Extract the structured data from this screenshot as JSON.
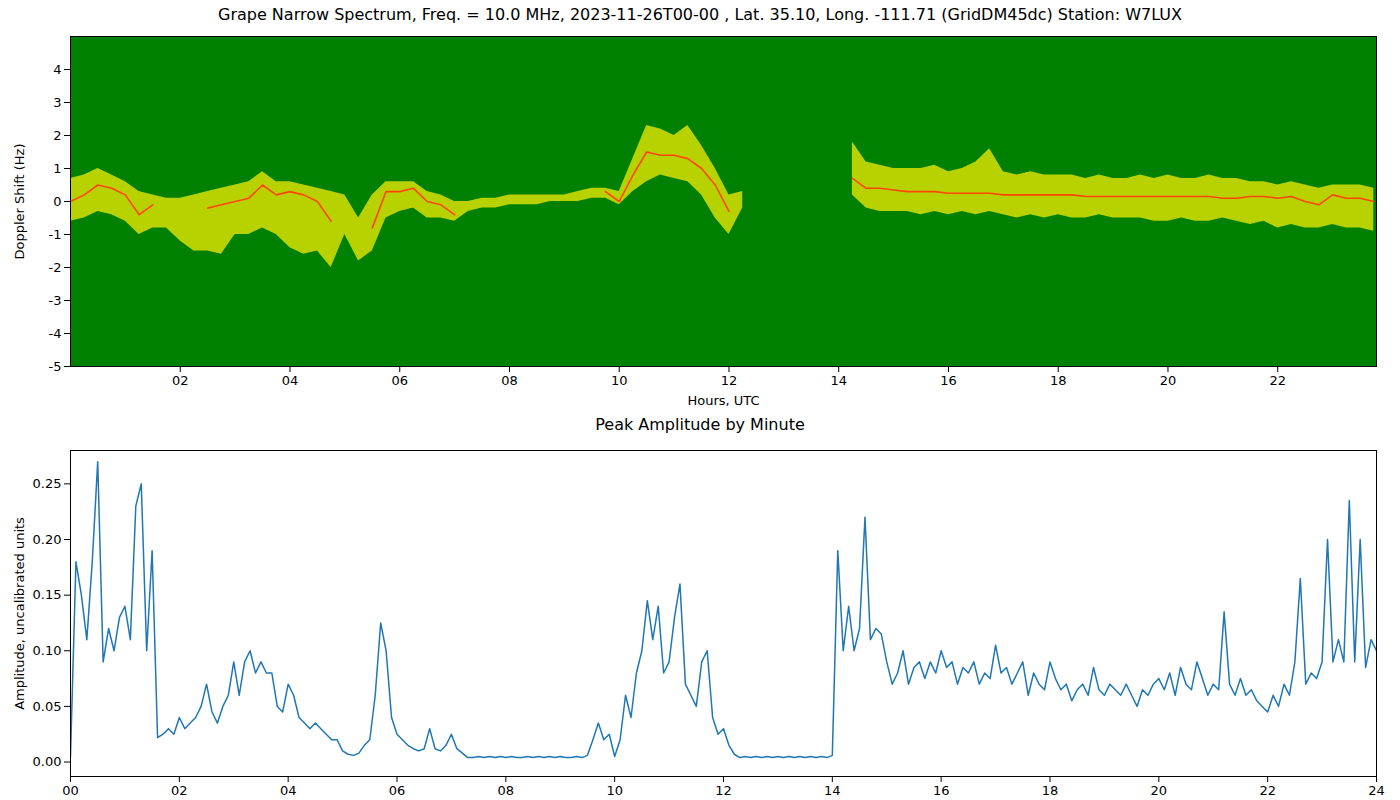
{
  "chart_data": [
    {
      "type": "spectrogram",
      "title": "Grape Narrow Spectrum, Freq. = 10.0 MHz, 2023-11-26T00-00 , Lat.  35.10, Long. -111.71 (GridDM45dc) Station: W7LUX",
      "x_label": "Hours, UTC",
      "y_label": "Doppler Shift (Hz)",
      "xlim": [
        0,
        23.8
      ],
      "ylim": [
        -5,
        5
      ],
      "xticks": [
        {
          "value": 2,
          "label": "02"
        },
        {
          "value": 4,
          "label": "04"
        },
        {
          "value": 6,
          "label": "06"
        },
        {
          "value": 8,
          "label": "08"
        },
        {
          "value": 10,
          "label": "10"
        },
        {
          "value": 12,
          "label": "12"
        },
        {
          "value": 14,
          "label": "14"
        },
        {
          "value": 16,
          "label": "16"
        },
        {
          "value": 18,
          "label": "18"
        },
        {
          "value": 20,
          "label": "20"
        },
        {
          "value": 22,
          "label": "22"
        }
      ],
      "yticks": [
        -5,
        -4,
        -3,
        -2,
        -1,
        0,
        1,
        2,
        3,
        4
      ],
      "color": "#ff4500",
      "x": [
        0,
        0.25,
        0.5,
        0.75,
        1,
        1.25,
        1.5,
        1.75,
        2,
        2.25,
        2.5,
        2.75,
        3,
        3.25,
        3.5,
        3.75,
        4,
        4.25,
        4.5,
        4.75,
        5,
        5.25,
        5.5,
        5.75,
        6,
        6.25,
        6.5,
        6.75,
        7,
        7.25,
        7.5,
        7.75,
        8,
        8.25,
        8.5,
        8.75,
        9,
        9.25,
        9.5,
        9.75,
        10,
        10.25,
        10.5,
        10.75,
        11,
        11.25,
        11.5,
        11.75,
        12,
        12.25,
        12.5,
        12.75,
        13,
        13.25,
        13.5,
        13.75,
        14,
        14.25,
        14.5,
        14.75,
        15,
        15.25,
        15.5,
        15.75,
        16,
        16.25,
        16.5,
        16.75,
        17,
        17.25,
        17.5,
        17.75,
        18,
        18.25,
        18.5,
        18.75,
        19,
        19.25,
        19.5,
        19.75,
        20,
        20.25,
        20.5,
        20.75,
        21,
        21.25,
        21.5,
        21.75,
        22,
        22.25,
        22.5,
        22.75,
        23,
        23.25,
        23.5,
        23.75
      ],
      "values": [
        0,
        0.2,
        0.5,
        0.4,
        0.2,
        -0.4,
        -0.1,
        null,
        null,
        null,
        -0.2,
        -0.1,
        0,
        0.1,
        0.5,
        0.2,
        0.3,
        0.2,
        0,
        -0.6,
        null,
        null,
        -0.8,
        0.3,
        0.3,
        0.4,
        0,
        -0.1,
        -0.4,
        null,
        null,
        null,
        null,
        null,
        null,
        null,
        null,
        null,
        null,
        0.3,
        0,
        0.8,
        1.5,
        1.4,
        1.4,
        1.3,
        1,
        0.5,
        -0.3,
        null,
        null,
        null,
        null,
        null,
        null,
        null,
        null,
        0.7,
        0.4,
        0.4,
        0.35,
        0.3,
        0.3,
        0.3,
        0.25,
        0.25,
        0.25,
        0.25,
        0.2,
        0.2,
        0.2,
        0.2,
        0.2,
        0.2,
        0.15,
        0.15,
        0.15,
        0.15,
        0.15,
        0.15,
        0.15,
        0.15,
        0.15,
        0.15,
        0.1,
        0.1,
        0.15,
        0.15,
        0.1,
        0.15,
        0,
        -0.1,
        0.2,
        0.1,
        0.1,
        0
      ],
      "lower": [
        -0.6,
        -0.5,
        -0.3,
        -0.4,
        -0.6,
        -1,
        -0.8,
        -0.8,
        -1.2,
        -1.5,
        -1.5,
        -1.6,
        -1,
        -1,
        -0.8,
        -1,
        -1.4,
        -1.6,
        -1.5,
        -2,
        -1,
        -1.8,
        -1.5,
        -0.5,
        -0.3,
        -0.2,
        -0.5,
        -0.5,
        -0.6,
        -0.3,
        -0.2,
        -0.2,
        -0.1,
        -0.1,
        -0.1,
        0,
        0,
        0,
        0.1,
        0.1,
        -0.1,
        0.3,
        0.6,
        0.8,
        0.7,
        0.6,
        0.2,
        -0.5,
        -1,
        -0.2,
        null,
        null,
        null,
        null,
        null,
        null,
        null,
        0.2,
        -0.2,
        -0.3,
        -0.3,
        -0.3,
        -0.4,
        -0.3,
        -0.4,
        -0.3,
        -0.4,
        -0.3,
        -0.4,
        -0.5,
        -0.4,
        -0.5,
        -0.4,
        -0.5,
        -0.5,
        -0.4,
        -0.5,
        -0.5,
        -0.5,
        -0.6,
        -0.6,
        -0.5,
        -0.6,
        -0.6,
        -0.5,
        -0.6,
        -0.7,
        -0.6,
        -0.8,
        -0.7,
        -0.8,
        -0.8,
        -0.7,
        -0.8,
        -0.8,
        -0.9
      ],
      "upper": [
        0.7,
        0.8,
        1,
        0.8,
        0.6,
        0.3,
        0.2,
        0.1,
        0.1,
        0.2,
        0.3,
        0.4,
        0.5,
        0.6,
        0.9,
        0.6,
        0.6,
        0.5,
        0.4,
        0.3,
        0.2,
        -0.5,
        0.2,
        0.6,
        0.6,
        0.6,
        0.3,
        0.2,
        0,
        0,
        0.1,
        0.1,
        0.2,
        0.2,
        0.2,
        0.2,
        0.2,
        0.3,
        0.4,
        0.4,
        0.3,
        1.3,
        2.3,
        2.2,
        2,
        2.3,
        1.7,
        1,
        0.2,
        0.3,
        null,
        null,
        null,
        null,
        null,
        null,
        null,
        1.8,
        1.2,
        1.1,
        1,
        1,
        1,
        1.1,
        0.9,
        1,
        1.2,
        1.6,
        0.9,
        0.8,
        0.9,
        0.8,
        0.8,
        0.8,
        0.7,
        0.8,
        0.7,
        0.7,
        0.8,
        0.7,
        0.8,
        0.7,
        0.7,
        0.8,
        0.7,
        0.7,
        0.6,
        0.6,
        0.5,
        0.6,
        0.5,
        0.4,
        0.5,
        0.5,
        0.5,
        0.4
      ]
    },
    {
      "type": "line",
      "title": "Peak Amplitude by Minute",
      "x_label": "Hours, UTC",
      "y_label": "Amplitude, uncalibrated units",
      "xlim": [
        0,
        24
      ],
      "ylim": [
        -0.013,
        0.28
      ],
      "xticks": [
        {
          "value": 0,
          "label": "00"
        },
        {
          "value": 2,
          "label": "02"
        },
        {
          "value": 4,
          "label": "04"
        },
        {
          "value": 6,
          "label": "06"
        },
        {
          "value": 8,
          "label": "08"
        },
        {
          "value": 10,
          "label": "10"
        },
        {
          "value": 12,
          "label": "12"
        },
        {
          "value": 14,
          "label": "14"
        },
        {
          "value": 16,
          "label": "16"
        },
        {
          "value": 18,
          "label": "18"
        },
        {
          "value": 20,
          "label": "20"
        },
        {
          "value": 22,
          "label": "22"
        },
        {
          "value": 24,
          "label": "24"
        }
      ],
      "yticks": [
        {
          "value": 0,
          "label": "0.00"
        },
        {
          "value": 0.05,
          "label": "0.05"
        },
        {
          "value": 0.1,
          "label": "0.10"
        },
        {
          "value": 0.15,
          "label": "0.15"
        },
        {
          "value": 0.2,
          "label": "0.20"
        },
        {
          "value": 0.25,
          "label": "0.25"
        }
      ],
      "color": "#1f77b4",
      "x": [
        0,
        0.1,
        0.2,
        0.3,
        0.4,
        0.5,
        0.6,
        0.7,
        0.8,
        0.9,
        1,
        1.1,
        1.2,
        1.3,
        1.4,
        1.5,
        1.6,
        1.7,
        1.8,
        1.9,
        2,
        2.1,
        2.2,
        2.3,
        2.4,
        2.5,
        2.6,
        2.7,
        2.8,
        2.9,
        3,
        3.1,
        3.2,
        3.3,
        3.4,
        3.5,
        3.6,
        3.7,
        3.8,
        3.9,
        4,
        4.1,
        4.2,
        4.3,
        4.4,
        4.5,
        4.6,
        4.7,
        4.8,
        4.9,
        5,
        5.1,
        5.2,
        5.3,
        5.4,
        5.5,
        5.6,
        5.7,
        5.8,
        5.9,
        6,
        6.1,
        6.2,
        6.3,
        6.4,
        6.5,
        6.6,
        6.7,
        6.8,
        6.9,
        7,
        7.1,
        7.2,
        7.3,
        7.4,
        7.5,
        7.6,
        7.7,
        7.8,
        7.9,
        8,
        8.1,
        8.2,
        8.3,
        8.4,
        8.5,
        8.6,
        8.7,
        8.8,
        8.9,
        9,
        9.1,
        9.2,
        9.3,
        9.4,
        9.5,
        9.6,
        9.7,
        9.8,
        9.9,
        10,
        10.1,
        10.2,
        10.3,
        10.4,
        10.5,
        10.6,
        10.7,
        10.8,
        10.9,
        11,
        11.1,
        11.2,
        11.3,
        11.4,
        11.5,
        11.6,
        11.7,
        11.8,
        11.9,
        12,
        12.1,
        12.2,
        12.3,
        12.4,
        12.5,
        12.6,
        12.7,
        12.8,
        12.9,
        13,
        13.1,
        13.2,
        13.3,
        13.4,
        13.5,
        13.6,
        13.7,
        13.8,
        13.9,
        14,
        14.1,
        14.2,
        14.3,
        14.4,
        14.5,
        14.6,
        14.7,
        14.8,
        14.9,
        15,
        15.1,
        15.2,
        15.3,
        15.4,
        15.5,
        15.6,
        15.7,
        15.8,
        15.9,
        16,
        16.1,
        16.2,
        16.3,
        16.4,
        16.5,
        16.6,
        16.7,
        16.8,
        16.9,
        17,
        17.1,
        17.2,
        17.3,
        17.4,
        17.5,
        17.6,
        17.7,
        17.8,
        17.9,
        18,
        18.1,
        18.2,
        18.3,
        18.4,
        18.5,
        18.6,
        18.7,
        18.8,
        18.9,
        19,
        19.1,
        19.2,
        19.3,
        19.4,
        19.5,
        19.6,
        19.7,
        19.8,
        19.9,
        20,
        20.1,
        20.2,
        20.3,
        20.4,
        20.5,
        20.6,
        20.7,
        20.8,
        20.9,
        21,
        21.1,
        21.2,
        21.3,
        21.4,
        21.5,
        21.6,
        21.7,
        21.8,
        21.9,
        22,
        22.1,
        22.2,
        22.3,
        22.4,
        22.5,
        22.6,
        22.7,
        22.8,
        22.9,
        23,
        23.1,
        23.2,
        23.3,
        23.4,
        23.5,
        23.6,
        23.7,
        23.8,
        23.9,
        24
      ],
      "values": [
        0.005,
        0.18,
        0.15,
        0.11,
        0.18,
        0.27,
        0.09,
        0.12,
        0.1,
        0.13,
        0.14,
        0.11,
        0.23,
        0.25,
        0.1,
        0.19,
        0.022,
        0.025,
        0.03,
        0.025,
        0.04,
        0.03,
        0.035,
        0.04,
        0.05,
        0.07,
        0.045,
        0.035,
        0.05,
        0.06,
        0.09,
        0.06,
        0.09,
        0.1,
        0.08,
        0.09,
        0.08,
        0.08,
        0.05,
        0.045,
        0.07,
        0.06,
        0.04,
        0.035,
        0.03,
        0.035,
        0.03,
        0.025,
        0.02,
        0.02,
        0.01,
        0.007,
        0.006,
        0.008,
        0.015,
        0.02,
        0.06,
        0.125,
        0.1,
        0.04,
        0.025,
        0.02,
        0.015,
        0.012,
        0.01,
        0.012,
        0.03,
        0.012,
        0.01,
        0.015,
        0.025,
        0.012,
        0.008,
        0.004,
        0.004,
        0.005,
        0.004,
        0.005,
        0.004,
        0.005,
        0.004,
        0.005,
        0.004,
        0.004,
        0.005,
        0.004,
        0.005,
        0.004,
        0.005,
        0.004,
        0.005,
        0.004,
        0.004,
        0.005,
        0.004,
        0.006,
        0.02,
        0.035,
        0.02,
        0.025,
        0.005,
        0.02,
        0.06,
        0.04,
        0.08,
        0.1,
        0.145,
        0.11,
        0.14,
        0.08,
        0.09,
        0.13,
        0.16,
        0.07,
        0.06,
        0.05,
        0.09,
        0.1,
        0.04,
        0.025,
        0.03,
        0.015,
        0.007,
        0.004,
        0.005,
        0.004,
        0.005,
        0.004,
        0.005,
        0.004,
        0.005,
        0.004,
        0.005,
        0.004,
        0.005,
        0.004,
        0.005,
        0.004,
        0.005,
        0.004,
        0.006,
        0.19,
        0.1,
        0.14,
        0.1,
        0.12,
        0.22,
        0.11,
        0.12,
        0.115,
        0.09,
        0.07,
        0.08,
        0.1,
        0.07,
        0.085,
        0.09,
        0.075,
        0.09,
        0.08,
        0.1,
        0.085,
        0.09,
        0.07,
        0.085,
        0.08,
        0.09,
        0.07,
        0.08,
        0.075,
        0.105,
        0.08,
        0.085,
        0.07,
        0.08,
        0.09,
        0.06,
        0.08,
        0.07,
        0.065,
        0.09,
        0.075,
        0.065,
        0.07,
        0.055,
        0.065,
        0.07,
        0.06,
        0.085,
        0.065,
        0.06,
        0.07,
        0.065,
        0.06,
        0.07,
        0.06,
        0.05,
        0.065,
        0.06,
        0.07,
        0.075,
        0.065,
        0.08,
        0.06,
        0.085,
        0.07,
        0.065,
        0.09,
        0.075,
        0.06,
        0.07,
        0.065,
        0.135,
        0.07,
        0.06,
        0.075,
        0.06,
        0.065,
        0.055,
        0.05,
        0.045,
        0.06,
        0.05,
        0.07,
        0.06,
        0.09,
        0.165,
        0.07,
        0.08,
        0.075,
        0.09,
        0.2,
        0.09,
        0.11,
        0.09,
        0.235,
        0.09,
        0.2,
        0.085,
        0.11,
        0.1
      ]
    }
  ]
}
